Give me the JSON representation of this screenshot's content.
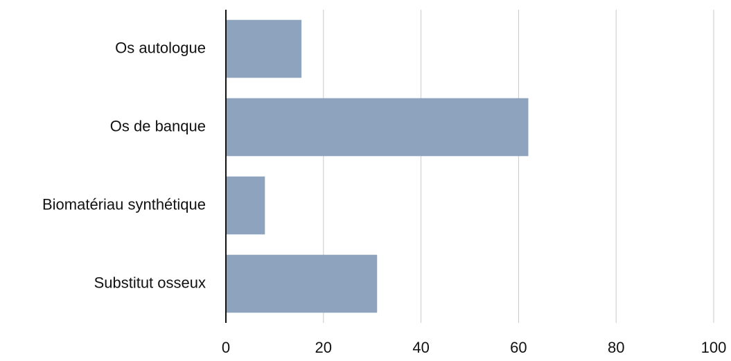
{
  "chart_data": {
    "type": "bar",
    "orientation": "horizontal",
    "categories": [
      "Os autologue",
      "Os de banque",
      "Biomatériau synthétique",
      "Substitut osseux"
    ],
    "values": [
      15.5,
      62,
      8,
      31
    ],
    "xlim": [
      0,
      100
    ],
    "xticks": [
      0,
      20,
      40,
      60,
      80,
      100
    ],
    "grid": true,
    "colors": {
      "bar": "#8ea3bd",
      "grid": "#c9c9c9",
      "axis": "#111111",
      "text": "#111111"
    }
  }
}
